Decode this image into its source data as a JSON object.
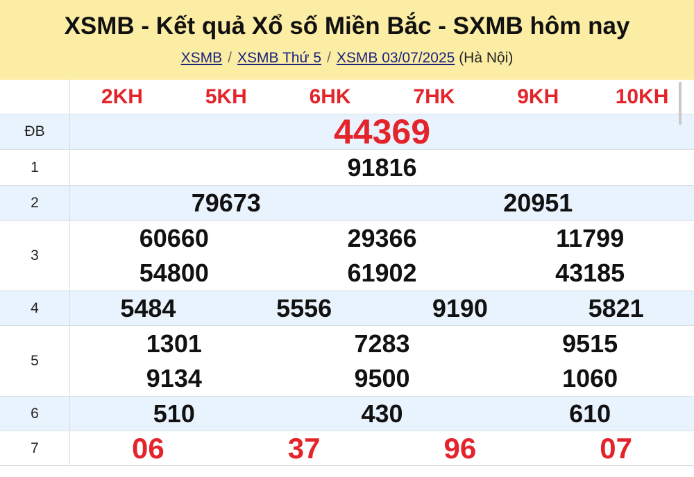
{
  "header": {
    "title": "XSMB - Kết quả Xổ số Miền Bắc - SXMB hôm nay",
    "breadcrumbs": [
      "XSMB",
      "XSMB Thứ 5",
      "XSMB 03/07/2025"
    ],
    "location": "(Hà Nội)"
  },
  "codes": [
    "2KH",
    "5KH",
    "6HK",
    "7HK",
    "9KH",
    "10KH"
  ],
  "prizes": [
    {
      "label": "ĐB",
      "numbers": [
        "44369"
      ]
    },
    {
      "label": "1",
      "numbers": [
        "91816"
      ]
    },
    {
      "label": "2",
      "numbers": [
        "79673",
        "20951"
      ]
    },
    {
      "label": "3",
      "numbers": [
        "60660",
        "29366",
        "11799",
        "54800",
        "61902",
        "43185"
      ]
    },
    {
      "label": "4",
      "numbers": [
        "5484",
        "5556",
        "9190",
        "5821"
      ]
    },
    {
      "label": "5",
      "numbers": [
        "1301",
        "7283",
        "9515",
        "9134",
        "9500",
        "1060"
      ]
    },
    {
      "label": "6",
      "numbers": [
        "510",
        "430",
        "610"
      ]
    },
    {
      "label": "7",
      "numbers": [
        "06",
        "37",
        "96",
        "07"
      ]
    }
  ],
  "colors": {
    "header_bg": "#fbeda4",
    "accent_red": "#e3242b",
    "row_blue": "#e9f3fd"
  }
}
